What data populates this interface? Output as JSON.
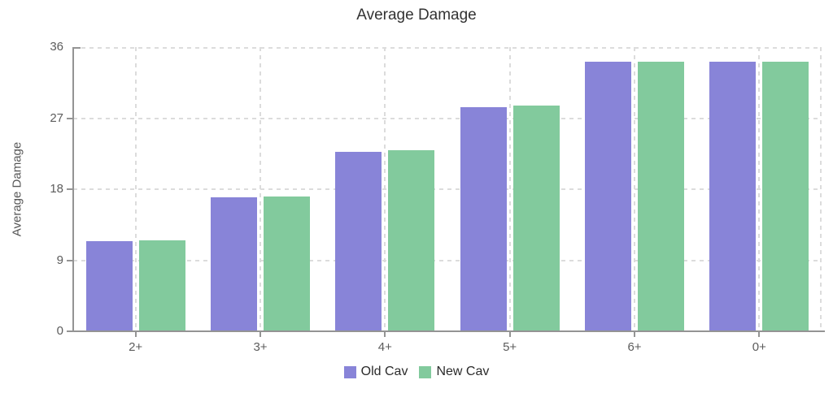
{
  "chart_data": {
    "type": "bar",
    "title": "Average Damage",
    "xlabel": "",
    "ylabel": "Average Damage",
    "categories": [
      "2+",
      "3+",
      "4+",
      "5+",
      "6+",
      "0+"
    ],
    "series": [
      {
        "name": "Old Cav",
        "color": "#8884d8",
        "values": [
          11.4,
          17.0,
          22.7,
          28.4,
          34.1,
          34.1
        ]
      },
      {
        "name": "New Cav",
        "color": "#82ca9d",
        "values": [
          11.5,
          17.1,
          22.9,
          28.6,
          34.2,
          34.2
        ]
      }
    ],
    "ylim": [
      0,
      36
    ],
    "yticks": [
      0,
      9,
      18,
      27,
      36
    ],
    "grid": true,
    "grid_style": "dashed",
    "legend_position": "bottom"
  },
  "colors": {
    "axis": "#949494",
    "grid": "#dcdcdc",
    "tick_text": "#5c5c5c",
    "title_text": "#333333",
    "legend_text": "#2b2b2b"
  }
}
